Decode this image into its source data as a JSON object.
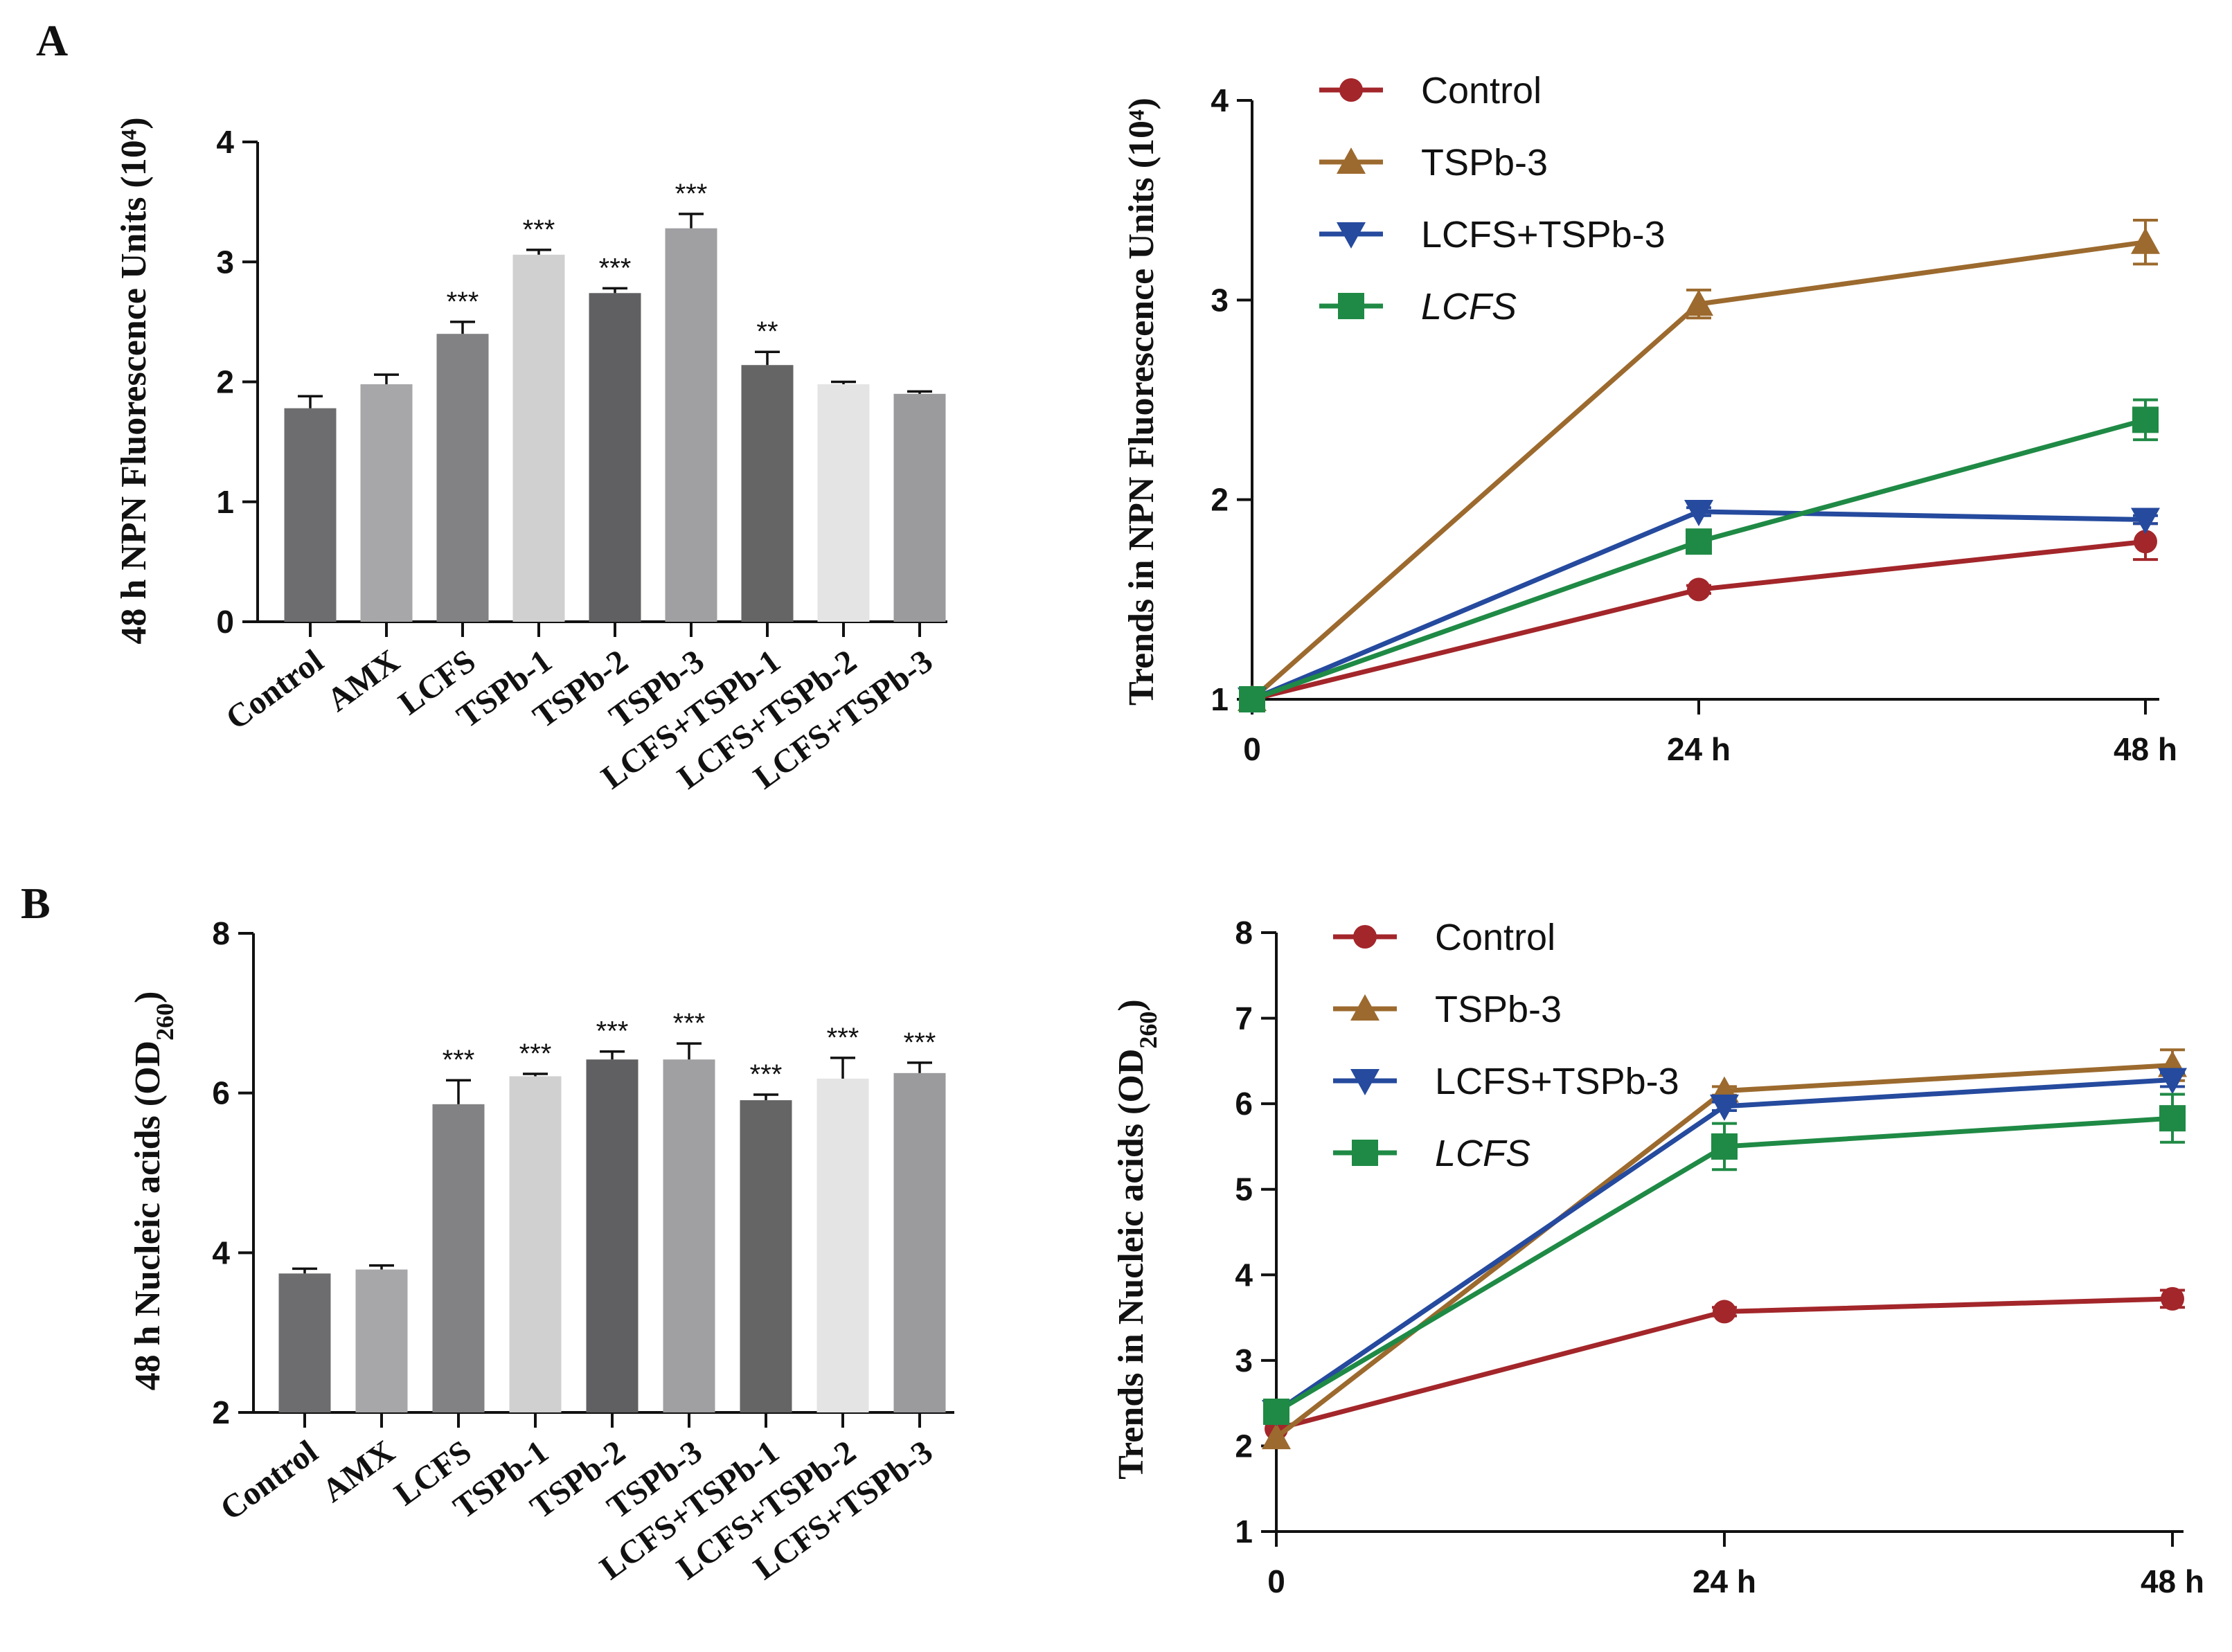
{
  "panels": [
    {
      "label": "A"
    },
    {
      "label": "B"
    }
  ],
  "chart_data": [
    {
      "type": "bar",
      "panel": "A",
      "ylabel": "48 h NPN Fluorescence Units (10⁴)",
      "ylim": [
        0,
        4
      ],
      "yticks": [
        0,
        1,
        2,
        3,
        4
      ],
      "categories": [
        "Control",
        "AMX",
        "LCFS",
        "TSPb-1",
        "TSPb-2",
        "TSPb-3",
        "LCFS+TSPb-1",
        "LCFS+TSPb-2",
        "LCFS+TSPb-3"
      ],
      "values": [
        1.78,
        1.98,
        2.4,
        3.06,
        2.74,
        3.28,
        2.14,
        1.98,
        1.9
      ],
      "errors": [
        0.1,
        0.08,
        0.1,
        0.04,
        0.04,
        0.12,
        0.11,
        0.02,
        0.02
      ],
      "significance": [
        "",
        "",
        "***",
        "***",
        "***",
        "***",
        "**",
        "",
        ""
      ],
      "colors": [
        "#6d6d6f",
        "#a7a7aa",
        "#828284",
        "#d0d0d0",
        "#606062",
        "#a0a0a3",
        "#656566",
        "#e4e4e4",
        "#9b9b9e"
      ]
    },
    {
      "type": "line",
      "panel": "A",
      "ylabel": "Trends in NPN Fluorescence Units (10⁴)",
      "ylim": [
        1,
        4
      ],
      "yticks": [
        1,
        2,
        3,
        4
      ],
      "x": [
        "0",
        "24 h",
        "48 h"
      ],
      "series": [
        {
          "name": "Control",
          "color": "#a3262a",
          "marker": "circle",
          "values": [
            1.0,
            1.55,
            1.79
          ],
          "errors": [
            0,
            0.02,
            0.09
          ]
        },
        {
          "name": "TSPb-3",
          "color": "#9c6a2e",
          "marker": "triangle-up",
          "values": [
            1.0,
            2.98,
            3.29
          ],
          "errors": [
            0,
            0.07,
            0.11
          ]
        },
        {
          "name": "LCFS+TSPb-3",
          "color": "#254a9e",
          "marker": "triangle-down",
          "values": [
            1.0,
            1.94,
            1.9
          ],
          "errors": [
            0,
            0.02,
            0.02
          ]
        },
        {
          "name": "LCFS",
          "color": "#1f8a45",
          "marker": "square",
          "italic": true,
          "values": [
            1.0,
            1.79,
            2.4
          ],
          "errors": [
            0,
            0.02,
            0.1
          ]
        }
      ]
    },
    {
      "type": "bar",
      "panel": "B",
      "ylabel": "48 h Nucleic acids (OD",
      "ylabel_sub": "260",
      "ylabel_end": ")",
      "ylim": [
        2,
        8
      ],
      "yticks": [
        2,
        4,
        6,
        8
      ],
      "categories": [
        "Control",
        "AMX",
        "LCFS",
        "TSPb-1",
        "TSPb-2",
        "TSPb-3",
        "LCFS+TSPb-1",
        "LCFS+TSPb-2",
        "LCFS+TSPb-3"
      ],
      "values": [
        3.74,
        3.79,
        5.86,
        6.21,
        6.42,
        6.42,
        5.91,
        6.18,
        6.25
      ],
      "errors": [
        0.06,
        0.05,
        0.3,
        0.03,
        0.1,
        0.2,
        0.07,
        0.26,
        0.13
      ],
      "significance": [
        "",
        "",
        "***",
        "***",
        "***",
        "***",
        "***",
        "***",
        "***"
      ],
      "colors": [
        "#6d6d6f",
        "#a7a7aa",
        "#828284",
        "#d0d0d0",
        "#606062",
        "#a0a0a3",
        "#656566",
        "#e4e4e4",
        "#9b9b9e"
      ]
    },
    {
      "type": "line",
      "panel": "B",
      "ylabel": "Trends in Nucleic acids (OD",
      "ylabel_sub": "260",
      "ylabel_end": ")",
      "ylim": [
        1,
        8
      ],
      "yticks": [
        1,
        2,
        3,
        4,
        5,
        6,
        7,
        8
      ],
      "x": [
        "0",
        "24 h",
        "48 h"
      ],
      "series": [
        {
          "name": "Control",
          "color": "#a3262a",
          "marker": "circle",
          "values": [
            2.2,
            3.57,
            3.72
          ],
          "errors": [
            0,
            0.05,
            0.1
          ]
        },
        {
          "name": "TSPb-3",
          "color": "#9c6a2e",
          "marker": "triangle-up",
          "values": [
            2.1,
            6.15,
            6.45
          ],
          "errors": [
            0,
            0.05,
            0.18
          ]
        },
        {
          "name": "LCFS+TSPb-3",
          "color": "#254a9e",
          "marker": "triangle-down",
          "values": [
            2.4,
            5.97,
            6.28
          ],
          "errors": [
            0,
            0.05,
            0.08
          ]
        },
        {
          "name": "LCFS",
          "color": "#1f8a45",
          "marker": "square",
          "italic": true,
          "values": [
            2.4,
            5.5,
            5.83
          ],
          "errors": [
            0.12,
            0.27,
            0.28
          ]
        }
      ]
    }
  ]
}
